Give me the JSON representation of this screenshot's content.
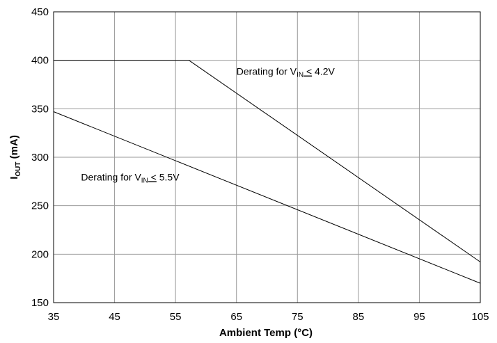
{
  "chart_data": {
    "type": "line",
    "title": "",
    "xlabel": "Ambient Temp (°C)",
    "ylabel": {
      "main": "I",
      "sub": "OUT",
      "rest": " (mA)"
    },
    "xlim": [
      35,
      105
    ],
    "ylim": [
      150,
      450
    ],
    "xticks": [
      35,
      45,
      55,
      65,
      75,
      85,
      95,
      105
    ],
    "yticks": [
      150,
      200,
      250,
      300,
      350,
      400,
      450
    ],
    "xtick_labels": [
      "35",
      "45",
      "55",
      "65",
      "75",
      "85",
      "95",
      "105"
    ],
    "ytick_labels": [
      "150",
      "200",
      "250",
      "300",
      "350",
      "400",
      "450"
    ],
    "grid": true,
    "legend": "none",
    "series": [
      {
        "x": [
          35,
          57.2,
          105
        ],
        "y": [
          400,
          400,
          192
        ],
        "color": "#000000"
      },
      {
        "x": [
          35,
          105
        ],
        "y": [
          347,
          170
        ],
        "color": "#000000"
      }
    ],
    "annotations": [
      {
        "pre": "Derating for V",
        "sub": "IN",
        "le": "<",
        "post": " 4.2V",
        "x": 65,
        "y": 385
      },
      {
        "pre": "Derating for V",
        "sub": "IN",
        "le": "<",
        "post": " 5.5V",
        "x": 39.5,
        "y": 276
      }
    ]
  }
}
